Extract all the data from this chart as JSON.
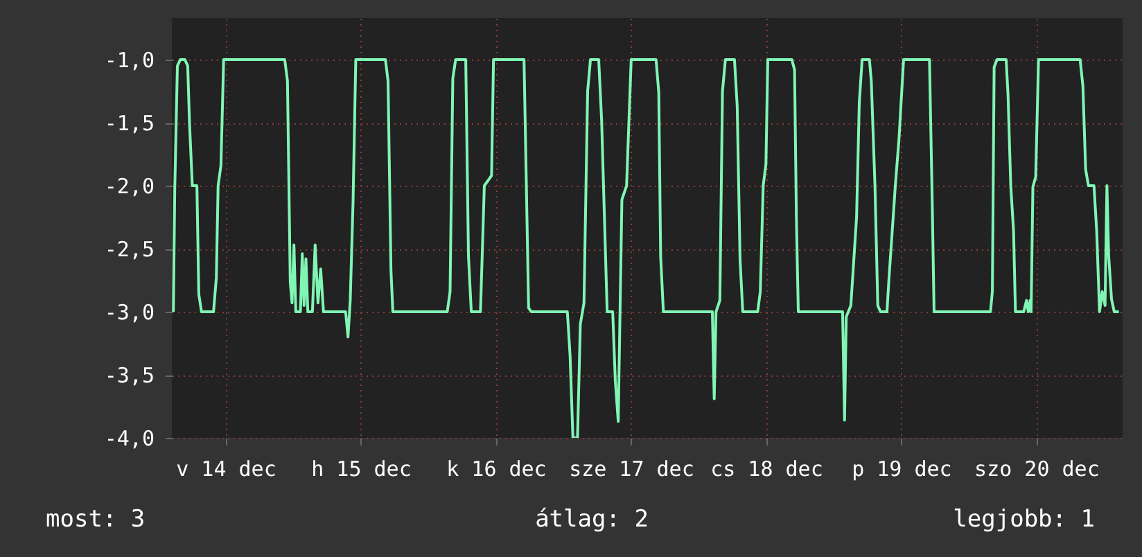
{
  "chart_data": {
    "type": "line",
    "annotations": [
      "most: 3",
      "átlag: 2",
      "legjobb: 1"
    ],
    "x": [
      "--12-13T14:44",
      "--12-13T14:59",
      "--12-13T15:27",
      "--12-13T15:58",
      "--12-13T16:47",
      "--12-13T17:17",
      "--12-13T17:36",
      "--12-13T18:06",
      "--12-13T18:55",
      "--12-13T19:15",
      "--12-13T19:44",
      "--12-13T21:52",
      "--12-13T22:22",
      "--12-13T22:41",
      "--12-13T23:11",
      "--12-13T23:40",
      "--12-14T10:31",
      "--12-14T11:00",
      "--12-14T11:30",
      "--12-14T11:49",
      "--12-14T12:09",
      "--12-14T12:29",
      "--12-14T13:18",
      "--12-14T13:38",
      "--12-14T13:57",
      "--12-14T14:17",
      "--12-14T14:37",
      "--12-14T15:26",
      "--12-14T15:55",
      "--12-14T16:25",
      "--12-14T16:54",
      "--12-14T17:24",
      "--12-14T21:20",
      "--12-14T21:45",
      "--12-14T22:09",
      "--12-14T22:39",
      "--12-14T23:08",
      "--12-15T04:24",
      "--12-15T04:52",
      "--12-15T05:23",
      "--12-15T05:43",
      "--12-15T15:23",
      "--12-15T15:53",
      "--12-15T16:22",
      "--12-15T16:52",
      "--12-15T18:40",
      "--12-15T19:09",
      "--12-15T19:39",
      "--12-15T21:17",
      "--12-15T21:58",
      "--12-15T23:15",
      "--12-15T23:36",
      "--12-16T05:01",
      "--12-16T05:20",
      "--12-16T05:50",
      "--12-16T06:19",
      "--12-16T12:43",
      "--12-16T13:12",
      "--12-16T13:42",
      "--12-16T14:31",
      "--12-16T15:01",
      "--12-16T15:40",
      "--12-16T16:19",
      "--12-16T16:49",
      "--12-16T18:17",
      "--12-16T18:48",
      "--12-16T19:47",
      "--12-16T20:46",
      "--12-16T21:14",
      "--12-16T21:45",
      "--12-16T22:24",
      "--12-16T23:14",
      "--12-17T00:03",
      "--12-17T04:28",
      "--12-17T04:57",
      "--12-17T05:17",
      "--12-17T05:46",
      "--12-17T14:28",
      "--12-17T14:48",
      "--12-17T15:07",
      "--12-17T15:48",
      "--12-17T16:16",
      "--12-17T16:47",
      "--12-17T18:24",
      "--12-17T18:53",
      "--12-17T19:23",
      "--12-17T19:52",
      "--12-17T22:31",
      "--12-17T22:59",
      "--12-17T23:30",
      "--12-17T23:59",
      "--12-18T00:19",
      "--12-18T04:35",
      "--12-18T05:04",
      "--12-18T05:24",
      "--12-18T05:44",
      "--12-18T13:36",
      "--12-18T13:57",
      "--12-18T14:15",
      "--12-18T15:04",
      "--12-18T16:05",
      "--12-18T16:34",
      "--12-18T17:04",
      "--12-18T18:22",
      "--12-18T18:42",
      "--12-18T19:21",
      "--12-18T19:51",
      "--12-18T20:20",
      "--12-18T21:29",
      "--12-18T21:49",
      "--12-18T22:58",
      "--12-18T23:37",
      "--12-19T00:26",
      "--12-19T05:02",
      "--12-19T05:31",
      "--12-19T05:51",
      "--12-19T15:52",
      "--12-19T16:12",
      "--12-19T16:31",
      "--12-19T17:01",
      "--12-19T18:39",
      "--12-19T18:59",
      "--12-19T19:28",
      "--12-19T19:58",
      "--12-19T20:18",
      "--12-19T21:46",
      "--12-19T22:16",
      "--12-19T22:35",
      "--12-19T22:55",
      "--12-19T23:05",
      "--12-19T23:24",
      "--12-19T23:54",
      "--12-20T00:24",
      "--12-20T07:47",
      "--12-20T08:17",
      "--12-20T08:46",
      "--12-20T09:16",
      "--12-20T10:15",
      "--12-20T10:44",
      "--12-20T11:14",
      "--12-20T11:43",
      "--12-20T12:13",
      "--12-20T12:33",
      "--12-20T12:52",
      "--12-20T13:22",
      "--12-20T13:51",
      "--12-20T14:40"
    ],
    "series": [
      {
        "color": "#80f5b4",
        "values": [
          -3,
          -2.03,
          -1.05,
          -1,
          -1,
          -1.05,
          -1.5,
          -2,
          -2,
          -2.86,
          -3,
          -3,
          -2.73,
          -2,
          -1.84,
          -1,
          -1,
          -1.17,
          -2.77,
          -2.93,
          -2.47,
          -3,
          -3,
          -2.54,
          -2.95,
          -2.58,
          -3,
          -3,
          -2.47,
          -2.93,
          -2.66,
          -3,
          -3,
          -3.2,
          -2.91,
          -2.13,
          -1,
          -1,
          -1.17,
          -2.67,
          -3,
          -3,
          -2.84,
          -1.15,
          -1,
          -1,
          -2.56,
          -3,
          -3,
          -2,
          -1.92,
          -1,
          -1,
          -1.76,
          -2.97,
          -3,
          -3,
          -3.35,
          -4,
          -4,
          -3.1,
          -2.93,
          -1.25,
          -1,
          -1,
          -1.48,
          -3,
          -3,
          -3.55,
          -3.87,
          -2.11,
          -2,
          -1,
          -1,
          -1.26,
          -2.56,
          -3,
          -3,
          -3.69,
          -3,
          -2.91,
          -1.25,
          -1,
          -1,
          -1.37,
          -2.58,
          -3,
          -3,
          -2.84,
          -2,
          -1.83,
          -1,
          -1,
          -1.08,
          -2.27,
          -3,
          -3,
          -3.86,
          -3.04,
          -2.95,
          -2.25,
          -1.34,
          -1,
          -1,
          -1.17,
          -2,
          -2.95,
          -3,
          -3,
          -2.75,
          -2,
          -1.63,
          -1,
          -1,
          -2.12,
          -3,
          -3,
          -2.84,
          -1.06,
          -1,
          -1,
          -1.28,
          -2,
          -2.36,
          -3,
          -3,
          -2.91,
          -3,
          -2.91,
          -3,
          -2.01,
          -1.93,
          -1,
          -1,
          -1.21,
          -1.87,
          -2,
          -2,
          -2.36,
          -3,
          -2.84,
          -2.95,
          -2,
          -2.56,
          -2.9,
          -3,
          -3
        ]
      }
    ],
    "xlim": [
      "--12-13T14:28",
      "--12-20T15:20"
    ],
    "xticks": [
      {
        "value": "--12-14",
        "label": "v 14 dec"
      },
      {
        "value": "--12-15",
        "label": "h 15 dec"
      },
      {
        "value": "--12-16",
        "label": "k 16 dec"
      },
      {
        "value": "--12-17",
        "label": "sze 17 dec"
      },
      {
        "value": "--12-18",
        "label": "cs 18 dec"
      },
      {
        "value": "--12-19",
        "label": "p 19 dec"
      },
      {
        "value": "--12-20",
        "label": "szo 20 dec"
      }
    ],
    "ylim": [
      -4,
      -0.67
    ],
    "yticks": [
      {
        "value": -1,
        "label": "-1,0"
      },
      {
        "value": -1.5,
        "label": "-1,5"
      },
      {
        "value": -2,
        "label": "-2,0"
      },
      {
        "value": -2.5,
        "label": "-2,5"
      },
      {
        "value": -3,
        "label": "-3,0"
      },
      {
        "value": -3.5,
        "label": "-3,5"
      },
      {
        "value": -4,
        "label": "-4,0"
      }
    ],
    "grid": true
  }
}
